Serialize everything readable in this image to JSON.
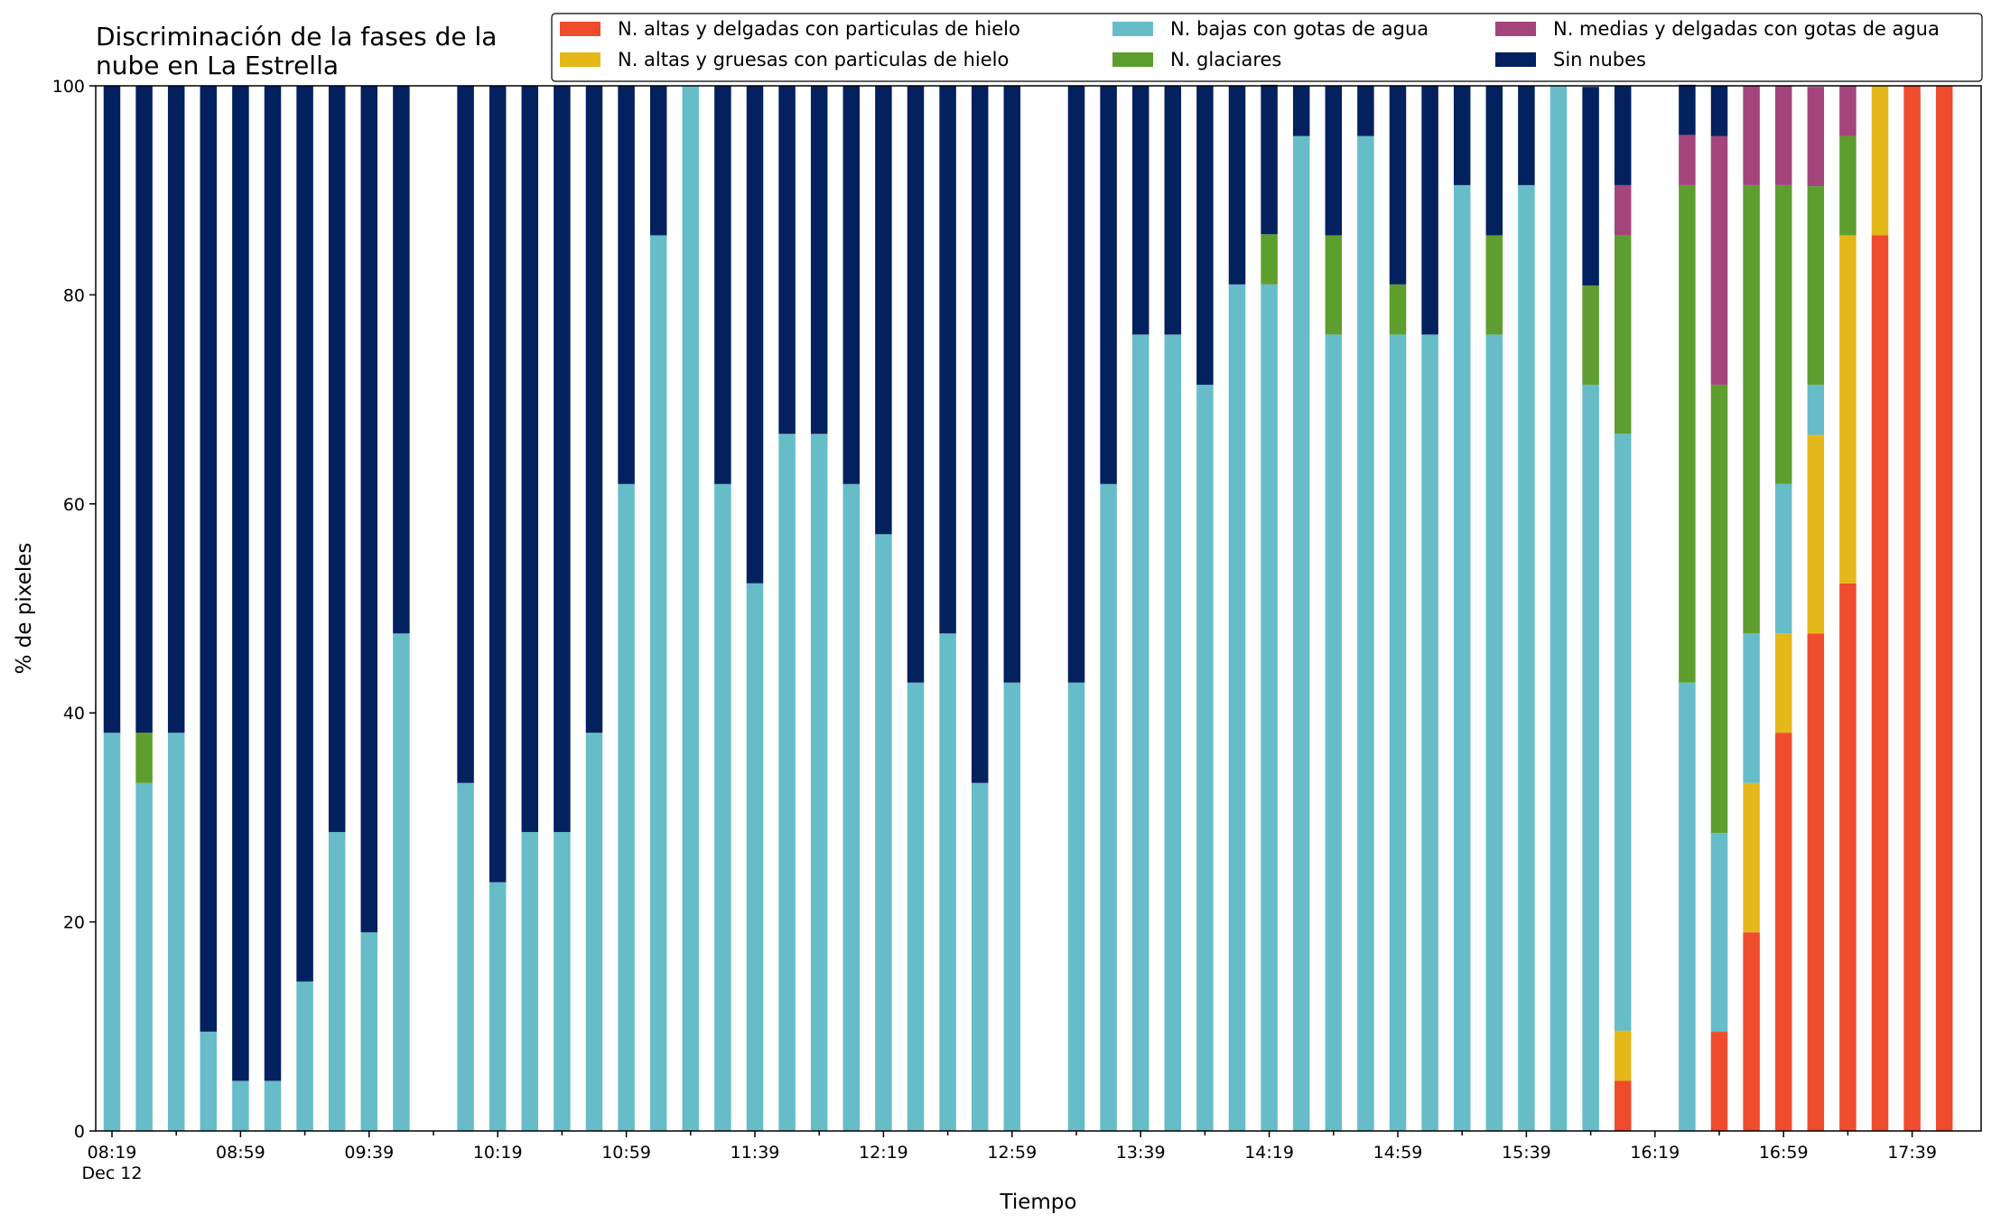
{
  "chart_data": {
    "type": "bar",
    "stacked": true,
    "title_lines": [
      "Discriminación de la fases de la",
      "nube en La Estrella"
    ],
    "xlabel": "Tiempo",
    "ylabel": "% de pixeles",
    "ylim": [
      0,
      100
    ],
    "yticks": [
      "0",
      "20",
      "40",
      "60",
      "80",
      "100"
    ],
    "x_tick_labels": [
      "08:19",
      "08:59",
      "09:39",
      "10:19",
      "10:59",
      "11:39",
      "12:19",
      "12:59",
      "13:39",
      "14:19",
      "14:59",
      "15:39",
      "16:19",
      "16:59",
      "17:39"
    ],
    "x_tick_sublabel": "Dec 12",
    "legend_position": "top-right",
    "legend_columns": 3,
    "series": [
      {
        "name": "N. altas y delgadas con particulas de hielo",
        "color": "#ee4c2c",
        "values": [
          0,
          0,
          0,
          0,
          0,
          0,
          0,
          0,
          0,
          0,
          null,
          0,
          0,
          0,
          0,
          0,
          0,
          0,
          0,
          0,
          0,
          0,
          0,
          0,
          0,
          0,
          0,
          0,
          0,
          null,
          0,
          0,
          0,
          0,
          0,
          0,
          0,
          0,
          0,
          0,
          0,
          0,
          0,
          0,
          0,
          0,
          0,
          4.8,
          null,
          0,
          9.5,
          19,
          38.1,
          47.6,
          52.4,
          85.7,
          100,
          100
        ]
      },
      {
        "name": "N. altas y gruesas con particulas de hielo",
        "color": "#e5b81a",
        "values": [
          0,
          0,
          0,
          0,
          0,
          0,
          0,
          0,
          0,
          0,
          null,
          0,
          0,
          0,
          0,
          0,
          0,
          0,
          0,
          0,
          0,
          0,
          0,
          0,
          0,
          0,
          0,
          0,
          0,
          null,
          0,
          0,
          0,
          0,
          0,
          0,
          0,
          0,
          0,
          0,
          0,
          0,
          0,
          0,
          0,
          0,
          0,
          4.8,
          null,
          0,
          0,
          14.3,
          9.5,
          19,
          33.3,
          14.3,
          0,
          0
        ]
      },
      {
        "name": "N. bajas con gotas de agua",
        "color": "#66bdc8",
        "values": [
          38.1,
          33.3,
          38.1,
          9.5,
          4.8,
          4.8,
          14.3,
          28.6,
          19,
          47.6,
          null,
          33.3,
          23.8,
          28.6,
          28.6,
          38.1,
          61.9,
          85.7,
          100,
          61.9,
          52.4,
          66.7,
          66.7,
          61.9,
          57.1,
          42.9,
          47.6,
          33.3,
          42.9,
          null,
          42.9,
          61.9,
          76.2,
          76.2,
          71.4,
          81,
          81,
          95.2,
          76.2,
          95.2,
          76.2,
          76.2,
          90.5,
          76.2,
          90.5,
          100,
          71.4,
          57.1,
          null,
          42.9,
          19,
          14.3,
          14.3,
          4.8,
          0,
          0,
          0,
          0
        ]
      },
      {
        "name": "N. glaciares",
        "color": "#5e9e2e",
        "values": [
          0,
          4.8,
          0,
          0,
          0,
          0,
          0,
          0,
          0,
          0,
          null,
          0,
          0,
          0,
          0,
          0,
          0,
          0,
          0,
          0,
          0,
          0,
          0,
          0,
          0,
          0,
          0,
          0,
          0,
          null,
          0,
          0,
          0,
          0,
          0,
          0,
          4.8,
          0,
          9.5,
          0,
          4.8,
          0,
          0,
          9.5,
          0,
          0,
          9.5,
          19,
          null,
          47.6,
          42.9,
          42.9,
          28.6,
          19,
          9.5,
          0,
          0,
          0
        ]
      },
      {
        "name": "N. medias y delgadas con gotas de agua",
        "color": "#a3447c",
        "values": [
          0,
          0,
          0,
          0,
          0,
          0,
          0,
          0,
          0,
          0,
          null,
          0,
          0,
          0,
          0,
          0,
          0,
          0,
          0,
          0,
          0,
          0,
          0,
          0,
          0,
          0,
          0,
          0,
          0,
          null,
          0,
          0,
          0,
          0,
          0,
          0,
          0,
          0,
          0,
          0,
          0,
          0,
          0,
          0,
          0,
          0,
          0,
          4.8,
          null,
          4.8,
          23.8,
          9.5,
          9.5,
          9.5,
          4.8,
          0,
          0,
          0
        ]
      },
      {
        "name": "Sin nubes",
        "color": "#03205f",
        "values": [
          61.9,
          61.9,
          61.9,
          90.5,
          95.2,
          95.2,
          85.7,
          71.4,
          81,
          52.4,
          null,
          66.7,
          76.2,
          71.4,
          71.4,
          61.9,
          38.1,
          14.3,
          0,
          38.1,
          47.6,
          33.3,
          33.3,
          38.1,
          42.9,
          57.1,
          52.4,
          66.7,
          57.1,
          null,
          57.1,
          38.1,
          23.8,
          23.8,
          28.6,
          19,
          14.3,
          4.8,
          14.3,
          4.8,
          19,
          23.8,
          9.5,
          14.3,
          9.5,
          0,
          19,
          9.5,
          null,
          4.8,
          4.8,
          0,
          0,
          0,
          0,
          0,
          0,
          0
        ]
      }
    ]
  }
}
